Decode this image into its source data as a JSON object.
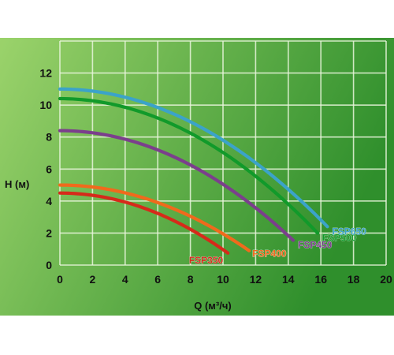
{
  "colors": {
    "background_dark": "#2f8f2c",
    "background_light": "#9bd36b",
    "grid": "#e9f5dc"
  },
  "chart_data": {
    "type": "line",
    "xlabel": "Q (м³/ч)",
    "ylabel": "H (м)",
    "xlim": [
      0,
      20
    ],
    "ylim": [
      0,
      14
    ],
    "x_ticks": [
      0,
      2,
      4,
      6,
      8,
      10,
      12,
      14,
      16,
      18,
      20
    ],
    "y_ticks": [
      0,
      2,
      4,
      6,
      8,
      10,
      12
    ],
    "grid": true,
    "series": [
      {
        "name": "FSP350",
        "color": "#d62a1a",
        "h0": 4.5,
        "q_end": 10.3,
        "h_end": 0.75
      },
      {
        "name": "FSP400",
        "color": "#f06a1c",
        "h0": 5.0,
        "q_end": 11.6,
        "h_end": 0.9
      },
      {
        "name": "FSP450",
        "color": "#7b3f8c",
        "h0": 8.4,
        "q_end": 14.3,
        "h_end": 1.55
      },
      {
        "name": "FSP500",
        "color": "#119a2a",
        "h0": 10.4,
        "q_end": 15.8,
        "h_end": 2.0
      },
      {
        "name": "FSP650",
        "color": "#3ba3c9",
        "h0": 11.0,
        "q_end": 16.4,
        "h_end": 2.4
      }
    ]
  }
}
